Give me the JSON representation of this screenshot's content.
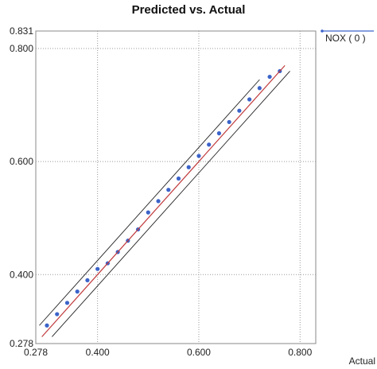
{
  "chart_data": {
    "type": "scatter",
    "title": "Predicted vs. Actual",
    "xlabel": "Actual",
    "ylabel": "",
    "xlim": [
      0.278,
      0.831
    ],
    "ylim": [
      0.278,
      0.831
    ],
    "x_ticks": [
      "0.278",
      "0.400",
      "0.600",
      "0.800"
    ],
    "y_ticks": [
      "0.278",
      "0.400",
      "0.600",
      "0.800",
      "0.831"
    ],
    "grid": true,
    "legend_position": "top-right",
    "series": [
      {
        "name": "NOX ( 0 )",
        "color": "#3b63c9",
        "points": [
          [
            0.3,
            0.31
          ],
          [
            0.32,
            0.33
          ],
          [
            0.34,
            0.35
          ],
          [
            0.36,
            0.37
          ],
          [
            0.38,
            0.39
          ],
          [
            0.4,
            0.41
          ],
          [
            0.42,
            0.42
          ],
          [
            0.44,
            0.44
          ],
          [
            0.46,
            0.46
          ],
          [
            0.48,
            0.48
          ],
          [
            0.5,
            0.51
          ],
          [
            0.52,
            0.53
          ],
          [
            0.54,
            0.55
          ],
          [
            0.56,
            0.57
          ],
          [
            0.58,
            0.59
          ],
          [
            0.6,
            0.61
          ],
          [
            0.62,
            0.63
          ],
          [
            0.64,
            0.65
          ],
          [
            0.66,
            0.67
          ],
          [
            0.68,
            0.69
          ],
          [
            0.7,
            0.71
          ],
          [
            0.72,
            0.73
          ],
          [
            0.74,
            0.75
          ],
          [
            0.76,
            0.76
          ]
        ]
      }
    ],
    "fit_line": {
      "color": "#c0393b",
      "from": [
        0.29,
        0.29
      ],
      "to": [
        0.77,
        0.77
      ]
    },
    "bound_lines": [
      {
        "from": [
          0.285,
          0.31
        ],
        "to": [
          0.72,
          0.745
        ]
      },
      {
        "from": [
          0.31,
          0.29
        ],
        "to": [
          0.78,
          0.76
        ]
      }
    ]
  }
}
